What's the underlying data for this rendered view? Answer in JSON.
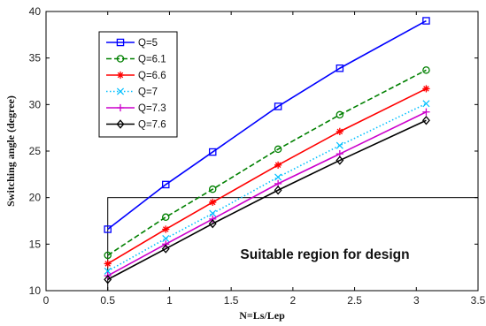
{
  "chart_data": {
    "type": "line",
    "xlabel": "N=Ls/Lep",
    "ylabel": "Switching angle (degree)",
    "xlim": [
      0,
      3.5
    ],
    "ylim": [
      10,
      40
    ],
    "x_ticks": [
      "0",
      "0.5",
      "1",
      "1.5",
      "2",
      "2.5",
      "3",
      "3.5"
    ],
    "y_ticks": [
      "10",
      "15",
      "20",
      "25",
      "30",
      "35",
      "40"
    ],
    "x": [
      0.5,
      0.97,
      1.35,
      1.88,
      2.38,
      3.08
    ],
    "series": [
      {
        "name": "Q=5",
        "color": "#0000ff",
        "dash": "solid",
        "marker": "square",
        "values": [
          16.6,
          21.4,
          24.9,
          29.8,
          33.9,
          39.0
        ]
      },
      {
        "name": "Q=6.1",
        "color": "#008000",
        "dash": "dashed",
        "marker": "circle",
        "values": [
          13.8,
          17.9,
          20.9,
          25.2,
          28.9,
          33.7
        ]
      },
      {
        "name": "Q=6.6",
        "color": "#ff0000",
        "dash": "solid",
        "marker": "star",
        "values": [
          12.9,
          16.6,
          19.5,
          23.5,
          27.1,
          31.7
        ]
      },
      {
        "name": "Q=7",
        "color": "#00bfff",
        "dash": "dotted",
        "marker": "x",
        "values": [
          12.1,
          15.6,
          18.3,
          22.2,
          25.6,
          30.1
        ]
      },
      {
        "name": "Q=7.3",
        "color": "#cc00cc",
        "dash": "solid",
        "marker": "plus",
        "values": [
          11.6,
          15.0,
          17.7,
          21.5,
          24.7,
          29.2
        ]
      },
      {
        "name": "Q=7.6",
        "color": "#000000",
        "dash": "solid",
        "marker": "diamond",
        "values": [
          11.2,
          14.5,
          17.2,
          20.8,
          24.0,
          28.3
        ]
      }
    ],
    "region": {
      "x_from": 0.5,
      "y_to": 20
    },
    "annotation": "Suitable region for design",
    "grid": false,
    "legend_position": "top-left"
  }
}
